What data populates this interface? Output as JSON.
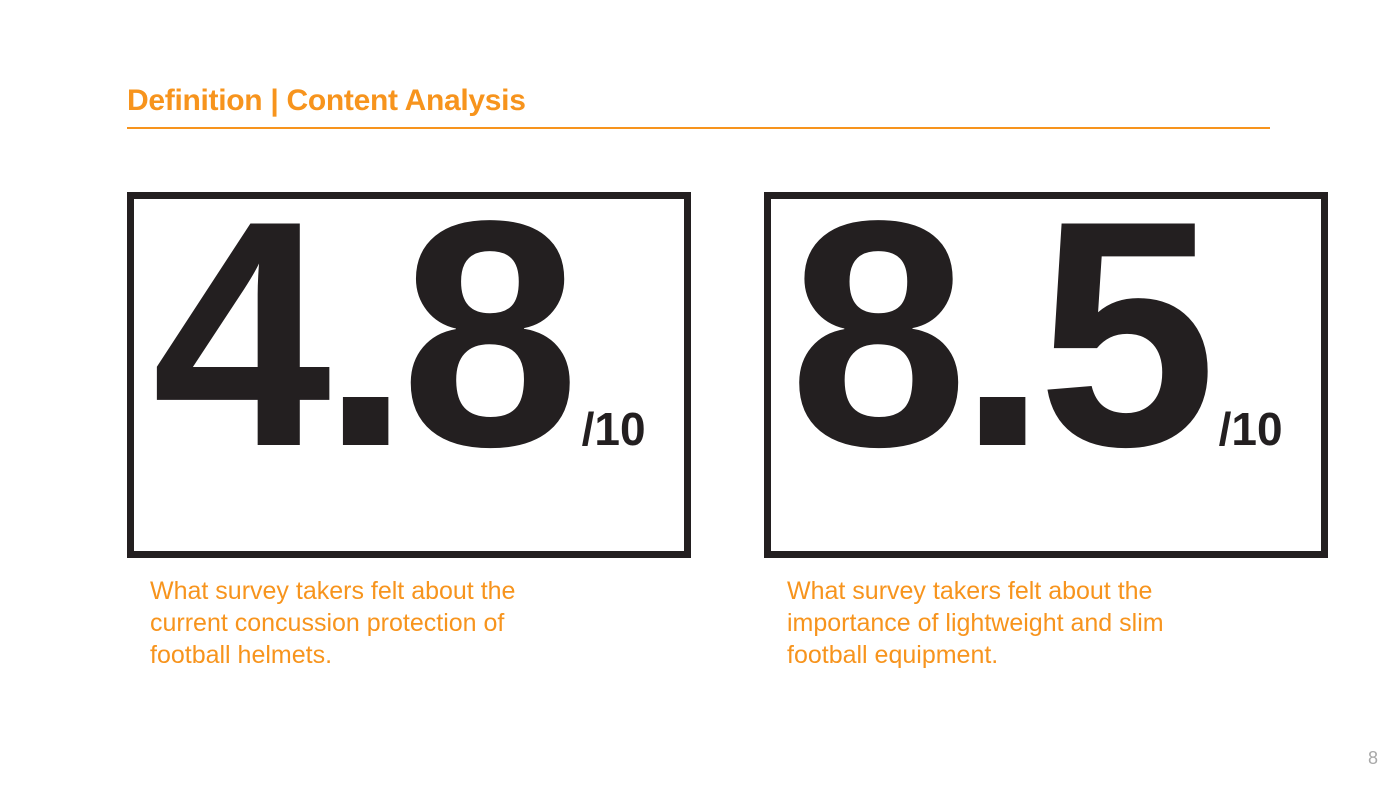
{
  "slide": {
    "title": "Definition | Content Analysis",
    "accent_color": "#F7941D",
    "page_number": "8"
  },
  "stats": [
    {
      "score": "4.8",
      "denominator": "/10",
      "caption": "What survey takers felt about the current concussion protection of football helmets."
    },
    {
      "score": "8.5",
      "denominator": "/10",
      "caption": "What survey takers felt about the importance of lightweight and slim football equipment."
    }
  ]
}
